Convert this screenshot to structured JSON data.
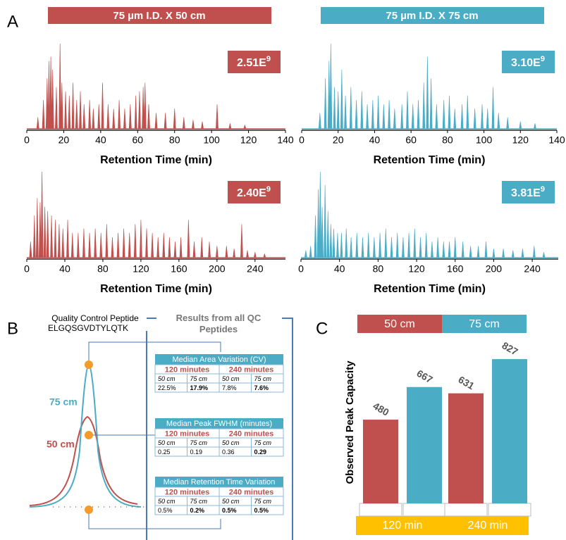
{
  "panel_labels": {
    "a": "A",
    "b": "B",
    "c": "C"
  },
  "chromatograms": {
    "headers": [
      {
        "text": "75 µm I.D. X 50 cm",
        "color": "#c0504d"
      },
      {
        "text": "75 µm I.D. X 75 cm",
        "color": "#4bacc6"
      }
    ],
    "x_label": "Retention Time (min)",
    "panels": [
      {
        "color": "#c0504d",
        "xlim": [
          0,
          140
        ],
        "xticks": [
          0,
          20,
          40,
          60,
          80,
          100,
          120,
          140
        ],
        "intensity": {
          "base": "2.51E",
          "exp": "9"
        },
        "peaks": [
          [
            6,
            0.15
          ],
          [
            9,
            0.35
          ],
          [
            11,
            0.6
          ],
          [
            12,
            0.8
          ],
          [
            13,
            0.85
          ],
          [
            14,
            0.7
          ],
          [
            16,
            0.5
          ],
          [
            18,
            1.0
          ],
          [
            19,
            0.55
          ],
          [
            21,
            0.45
          ],
          [
            23,
            0.4
          ],
          [
            25,
            0.55
          ],
          [
            27,
            0.35
          ],
          [
            29,
            0.45
          ],
          [
            31,
            0.3
          ],
          [
            34,
            0.35
          ],
          [
            36,
            0.25
          ],
          [
            39,
            0.3
          ],
          [
            41,
            0.55
          ],
          [
            44,
            0.3
          ],
          [
            47,
            0.25
          ],
          [
            50,
            0.35
          ],
          [
            53,
            0.25
          ],
          [
            56,
            0.3
          ],
          [
            59,
            0.4
          ],
          [
            61,
            0.45
          ],
          [
            63,
            0.5
          ],
          [
            64,
            0.55
          ],
          [
            66,
            0.3
          ],
          [
            70,
            0.2
          ],
          [
            75,
            0.2
          ],
          [
            80,
            0.25
          ],
          [
            85,
            0.15
          ],
          [
            90,
            0.12
          ],
          [
            95,
            0.1
          ],
          [
            103,
            0.3
          ],
          [
            110,
            0.08
          ],
          [
            118,
            0.06
          ]
        ]
      },
      {
        "color": "#4bacc6",
        "xlim": [
          0,
          140
        ],
        "xticks": [
          0,
          20,
          40,
          60,
          80,
          100,
          120,
          140
        ],
        "intensity": {
          "base": "3.10E",
          "exp": "9"
        },
        "peaks": [
          [
            10,
            0.2
          ],
          [
            13,
            0.6
          ],
          [
            15,
            0.8
          ],
          [
            16,
            1.0
          ],
          [
            18,
            0.5
          ],
          [
            20,
            0.45
          ],
          [
            22,
            0.7
          ],
          [
            24,
            0.4
          ],
          [
            27,
            0.5
          ],
          [
            30,
            0.35
          ],
          [
            33,
            0.45
          ],
          [
            36,
            0.3
          ],
          [
            39,
            0.35
          ],
          [
            42,
            0.4
          ],
          [
            45,
            0.3
          ],
          [
            48,
            0.35
          ],
          [
            51,
            0.25
          ],
          [
            55,
            0.3
          ],
          [
            58,
            0.45
          ],
          [
            61,
            0.3
          ],
          [
            64,
            0.35
          ],
          [
            67,
            0.55
          ],
          [
            69,
            0.85
          ],
          [
            71,
            0.6
          ],
          [
            74,
            0.3
          ],
          [
            78,
            0.35
          ],
          [
            81,
            0.4
          ],
          [
            84,
            0.25
          ],
          [
            88,
            0.3
          ],
          [
            91,
            0.4
          ],
          [
            95,
            0.25
          ],
          [
            99,
            0.3
          ],
          [
            102,
            0.25
          ],
          [
            105,
            0.5
          ],
          [
            108,
            0.2
          ],
          [
            113,
            0.15
          ],
          [
            120,
            0.1
          ],
          [
            128,
            0.08
          ]
        ]
      },
      {
        "color": "#c0504d",
        "xlim": [
          0,
          272
        ],
        "xticks": [
          0,
          40,
          80,
          120,
          160,
          200,
          240
        ],
        "intensity": {
          "base": "2.40E",
          "exp": "9"
        },
        "peaks": [
          [
            4,
            0.2
          ],
          [
            8,
            0.5
          ],
          [
            11,
            0.7
          ],
          [
            14,
            0.65
          ],
          [
            16,
            1.0
          ],
          [
            19,
            0.6
          ],
          [
            22,
            0.55
          ],
          [
            26,
            0.5
          ],
          [
            30,
            0.45
          ],
          [
            34,
            0.4
          ],
          [
            38,
            0.35
          ],
          [
            43,
            0.45
          ],
          [
            48,
            0.3
          ],
          [
            54,
            0.3
          ],
          [
            60,
            0.35
          ],
          [
            66,
            0.3
          ],
          [
            72,
            0.35
          ],
          [
            78,
            0.3
          ],
          [
            84,
            0.4
          ],
          [
            90,
            0.25
          ],
          [
            96,
            0.3
          ],
          [
            102,
            0.35
          ],
          [
            108,
            0.3
          ],
          [
            114,
            0.4
          ],
          [
            120,
            0.45
          ],
          [
            126,
            0.35
          ],
          [
            132,
            0.3
          ],
          [
            138,
            0.25
          ],
          [
            144,
            0.3
          ],
          [
            150,
            0.25
          ],
          [
            156,
            0.2
          ],
          [
            162,
            0.25
          ],
          [
            170,
            0.45
          ],
          [
            176,
            0.2
          ],
          [
            184,
            0.25
          ],
          [
            192,
            0.2
          ],
          [
            200,
            0.15
          ],
          [
            210,
            0.15
          ],
          [
            218,
            0.12
          ],
          [
            226,
            0.4
          ],
          [
            232,
            0.1
          ],
          [
            240,
            0.08
          ],
          [
            250,
            0.06
          ]
        ]
      },
      {
        "color": "#4bacc6",
        "xlim": [
          0,
          267
        ],
        "xticks": [
          0,
          40,
          80,
          120,
          160,
          200,
          240
        ],
        "intensity": {
          "base": "3.81E",
          "exp": "9"
        },
        "peaks": [
          [
            5,
            0.1
          ],
          [
            10,
            0.15
          ],
          [
            15,
            0.5
          ],
          [
            18,
            0.8
          ],
          [
            20,
            1.0
          ],
          [
            22,
            0.6
          ],
          [
            25,
            0.85
          ],
          [
            28,
            0.55
          ],
          [
            31,
            0.4
          ],
          [
            34,
            0.35
          ],
          [
            38,
            0.3
          ],
          [
            42,
            0.3
          ],
          [
            47,
            0.35
          ],
          [
            52,
            0.25
          ],
          [
            58,
            0.3
          ],
          [
            64,
            0.25
          ],
          [
            70,
            0.3
          ],
          [
            76,
            0.25
          ],
          [
            82,
            0.3
          ],
          [
            88,
            0.35
          ],
          [
            94,
            0.25
          ],
          [
            100,
            0.3
          ],
          [
            106,
            0.25
          ],
          [
            112,
            0.3
          ],
          [
            118,
            0.35
          ],
          [
            124,
            0.25
          ],
          [
            130,
            0.3
          ],
          [
            136,
            0.2
          ],
          [
            142,
            0.25
          ],
          [
            148,
            0.2
          ],
          [
            154,
            0.2
          ],
          [
            160,
            0.25
          ],
          [
            168,
            0.2
          ],
          [
            176,
            0.15
          ],
          [
            184,
            0.15
          ],
          [
            192,
            0.2
          ],
          [
            200,
            0.12
          ],
          [
            210,
            0.12
          ],
          [
            220,
            0.1
          ],
          [
            230,
            0.12
          ],
          [
            242,
            0.15
          ],
          [
            252,
            0.08
          ]
        ]
      }
    ]
  },
  "qc": {
    "peptide_title": "Quality Control Peptide",
    "peptide_sequence": "ELGQSGVDTYLQTK",
    "label_75": "75 cm",
    "label_50": "50 cm",
    "results_title": "Results from all QC Peptides",
    "tables": [
      {
        "title": "Median Area Variation (CV)",
        "groups": [
          "120 minutes",
          "240 minutes"
        ],
        "cols": [
          "50 cm",
          "75 cm",
          "50 cm",
          "75 cm"
        ],
        "values": [
          "22.5%",
          "17.9%",
          "7.8%",
          "7.6%"
        ],
        "bold": [
          false,
          true,
          false,
          true
        ]
      },
      {
        "title": "Median Peak FWHM (minutes)",
        "groups": [
          "120 minutes",
          "240 minutes"
        ],
        "cols": [
          "50 cm",
          "75 cm",
          "50 cm",
          "75 cm"
        ],
        "values": [
          "0.25",
          "0.19",
          "0.36",
          "0.29"
        ],
        "bold": [
          false,
          false,
          false,
          true
        ]
      },
      {
        "title": "Median Retention Time Variation",
        "groups": [
          "120 minutes",
          "240 minutes"
        ],
        "cols": [
          "50 cm",
          "75 cm",
          "50 cm",
          "75 cm"
        ],
        "values": [
          "0.5%",
          "0.2%",
          "0.5%",
          "0.5%"
        ],
        "bold": [
          false,
          true,
          true,
          true
        ]
      }
    ]
  },
  "chart_data": {
    "type": "bar",
    "y_label": "Observed Peak Capacity",
    "categories": [
      "120 min",
      "240 min"
    ],
    "series": [
      {
        "name": "50 cm",
        "color": "#c0504d",
        "values": [
          480,
          631
        ]
      },
      {
        "name": "75 cm",
        "color": "#4bacc6",
        "values": [
          667,
          827
        ]
      }
    ],
    "ylim": [
      0,
      900
    ]
  }
}
